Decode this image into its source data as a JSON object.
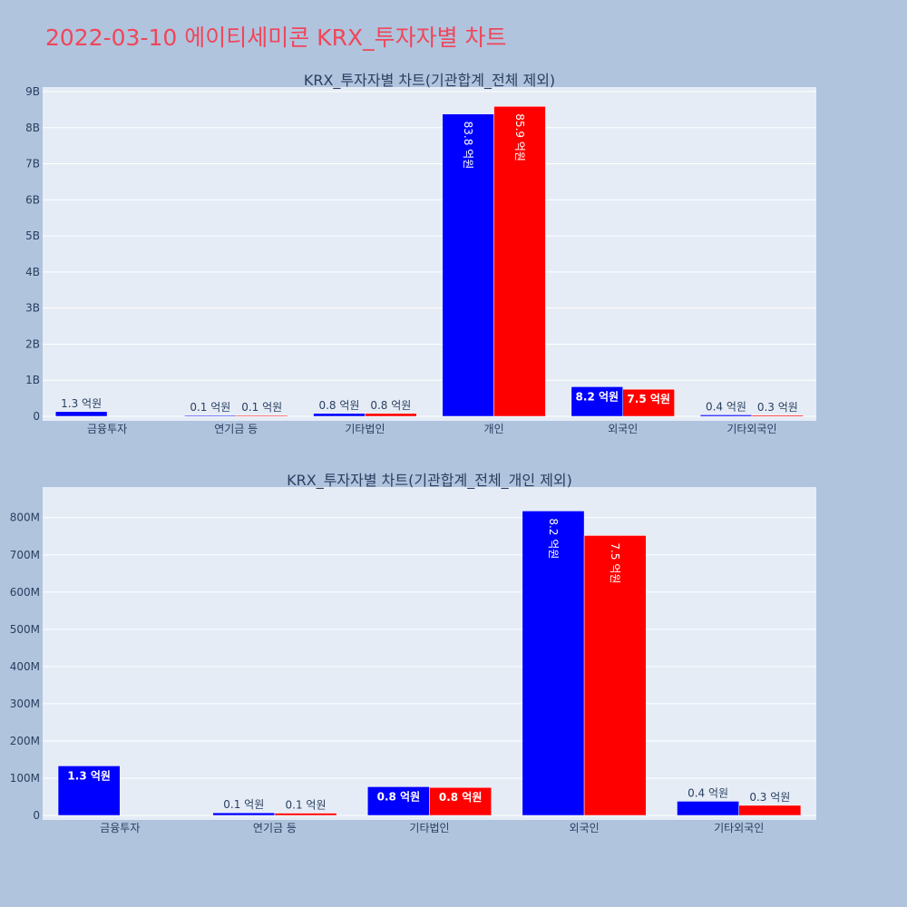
{
  "page": {
    "title": "2022-03-10 에이티세미콘 KRX_투자자별 차트"
  },
  "colors": {
    "series1": "#0000ff",
    "series2": "#ff0000",
    "plot_bg": "#e5ecf6",
    "page_bg": "#b0c4de",
    "title": "#f0465a"
  },
  "chart_data": [
    {
      "type": "bar",
      "title": "KRX_투자자별 차트(기관합계_전체 제외)",
      "categories": [
        "금융투자",
        "연기금 등",
        "기타법인",
        "개인",
        "외국인",
        "기타외국인"
      ],
      "yticks": [
        "0",
        "1B",
        "2B",
        "3B",
        "4B",
        "5B",
        "6B",
        "7B",
        "8B",
        "9B"
      ],
      "ylim": [
        0,
        9000000000
      ],
      "grid": true,
      "series": [
        {
          "color": "#0000ff",
          "values": [
            130000000,
            10000000,
            80000000,
            8380000000,
            820000000,
            40000000
          ],
          "labels": [
            "1.3 억원",
            "0.1 억원",
            "0.8 억원",
            "83.8 억원",
            "8.2 억원",
            "0.4 억원"
          ]
        },
        {
          "color": "#ff0000",
          "values": [
            null,
            10000000,
            80000000,
            8590000000,
            750000000,
            30000000
          ],
          "labels": [
            "",
            "0.1 억원",
            "0.8 억원",
            "85.9 억원",
            "7.5 억원",
            "0.3 억원"
          ]
        }
      ]
    },
    {
      "type": "bar",
      "title": "KRX_투자자별 차트(기관합계_전체_개인 제외)",
      "categories": [
        "금융투자",
        "연기금 등",
        "기타법인",
        "외국인",
        "기타외국인"
      ],
      "yticks": [
        "0",
        "100M",
        "200M",
        "300M",
        "400M",
        "500M",
        "600M",
        "700M",
        "800M"
      ],
      "ylim": [
        0,
        870000000
      ],
      "grid": true,
      "series": [
        {
          "color": "#0000ff",
          "values": [
            133000000,
            7000000,
            77000000,
            818000000,
            38000000
          ],
          "labels": [
            "1.3 억원",
            "0.1 억원",
            "0.8 억원",
            "8.2 억원",
            "0.4 억원"
          ]
        },
        {
          "color": "#ff0000",
          "values": [
            null,
            6000000,
            75000000,
            752000000,
            27000000
          ],
          "labels": [
            "",
            "0.1 억원",
            "0.8 억원",
            "7.5 억원",
            "0.3 억원"
          ]
        }
      ]
    }
  ]
}
